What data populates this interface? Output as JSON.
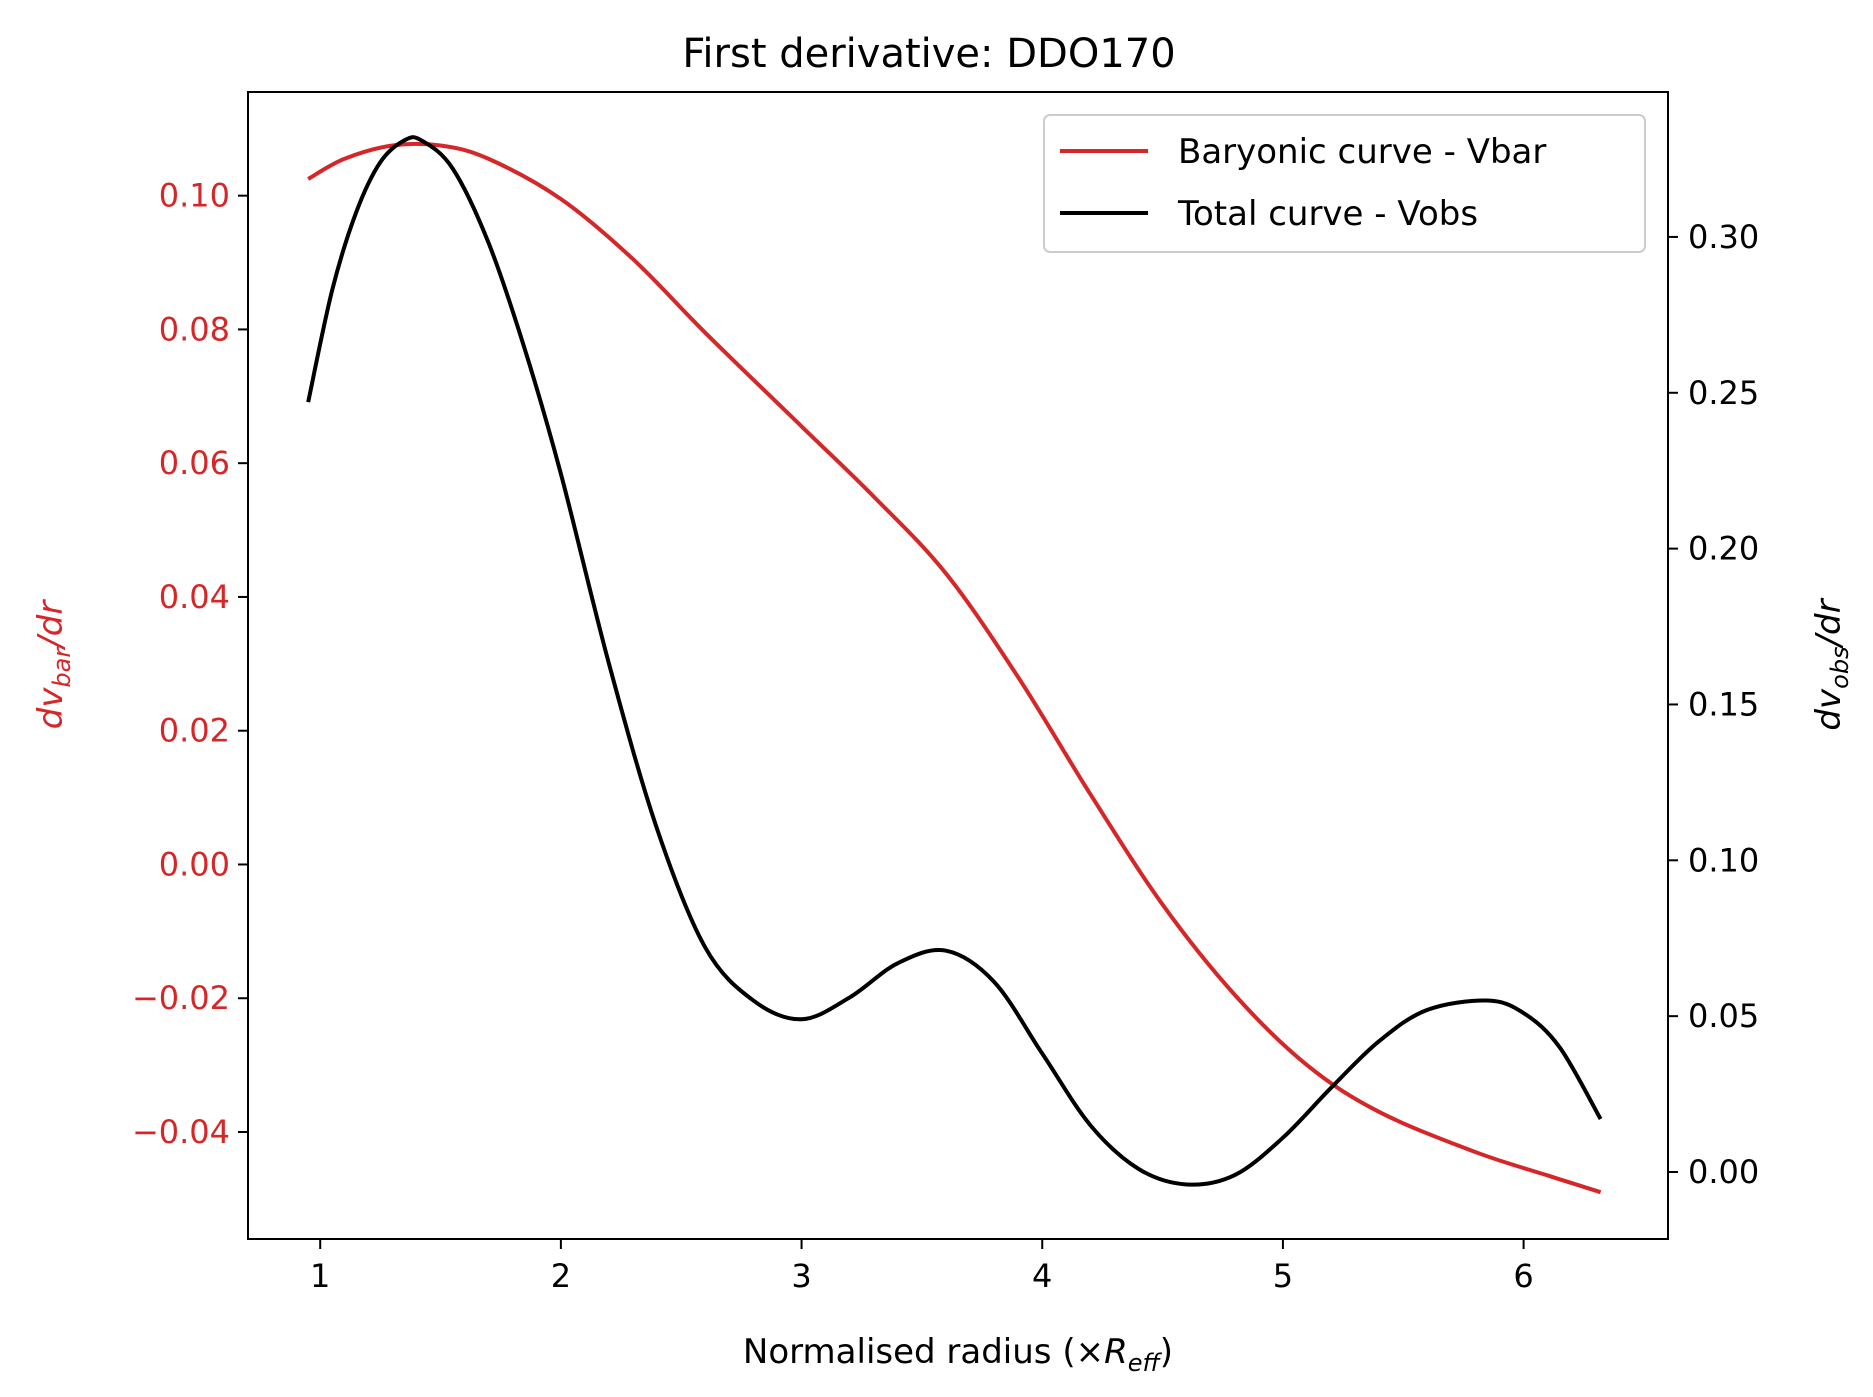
{
  "chart_data": {
    "type": "line",
    "title": "First derivative: DDO170",
    "xlabel": {
      "main": "Normalised radius (×",
      "var": "R",
      "sub": "eff",
      "close": ")"
    },
    "ylabel_left": {
      "prefix": "dv",
      "sub": "bar",
      "suffix": "/dr"
    },
    "ylabel_right": {
      "prefix": "dv",
      "sub": "obs",
      "suffix": "/dr"
    },
    "xlim": [
      0.7,
      6.6
    ],
    "ylim_left": [
      -0.056,
      0.1155
    ],
    "ylim_right": [
      -0.0215,
      0.3465
    ],
    "x_ticks": [
      1,
      2,
      3,
      4,
      5,
      6
    ],
    "x_tick_labels": [
      "1",
      "2",
      "3",
      "4",
      "5",
      "6"
    ],
    "left_ticks": [
      0.1,
      0.08,
      0.06,
      0.04,
      0.02,
      0.0,
      -0.02,
      -0.04
    ],
    "left_tick_labels": [
      "0.10",
      "0.08",
      "0.06",
      "0.04",
      "0.02",
      "0.00",
      "−0.02",
      "−0.04"
    ],
    "right_ticks": [
      0.3,
      0.25,
      0.2,
      0.15,
      0.1,
      0.05,
      0.0
    ],
    "right_tick_labels": [
      "0.30",
      "0.25",
      "0.20",
      "0.15",
      "0.10",
      "0.05",
      "0.00"
    ],
    "legend_position": "upper right",
    "series": [
      {
        "name": "Baryonic curve - Vbar",
        "axis": "left",
        "color": "#d62728",
        "x": [
          0.95,
          1.1,
          1.3,
          1.5,
          1.7,
          2.0,
          2.3,
          2.6,
          3.0,
          3.3,
          3.6,
          3.9,
          4.2,
          4.5,
          4.8,
          5.1,
          5.4,
          5.8,
          6.1,
          6.32
        ],
        "y": [
          0.1025,
          0.1055,
          0.1075,
          0.1075,
          0.1055,
          0.0995,
          0.0905,
          0.0795,
          0.0655,
          0.055,
          0.0435,
          0.028,
          0.0105,
          -0.006,
          -0.0195,
          -0.03,
          -0.037,
          -0.043,
          -0.0465,
          -0.049
        ]
      },
      {
        "name": "Total curve - Vobs",
        "axis": "right",
        "color": "#000000",
        "x": [
          0.95,
          1.05,
          1.15,
          1.25,
          1.35,
          1.42,
          1.55,
          1.7,
          1.85,
          2.0,
          2.2,
          2.4,
          2.6,
          2.8,
          3.0,
          3.2,
          3.4,
          3.6,
          3.8,
          4.0,
          4.2,
          4.4,
          4.6,
          4.8,
          5.0,
          5.2,
          5.4,
          5.6,
          5.85,
          6.0,
          6.15,
          6.32
        ],
        "y": [
          0.247,
          0.283,
          0.308,
          0.324,
          0.331,
          0.331,
          0.322,
          0.298,
          0.264,
          0.224,
          0.163,
          0.11,
          0.072,
          0.055,
          0.049,
          0.056,
          0.067,
          0.071,
          0.061,
          0.038,
          0.015,
          0.001,
          -0.004,
          -0.001,
          0.011,
          0.027,
          0.042,
          0.052,
          0.055,
          0.051,
          0.04,
          0.017
        ]
      }
    ]
  }
}
